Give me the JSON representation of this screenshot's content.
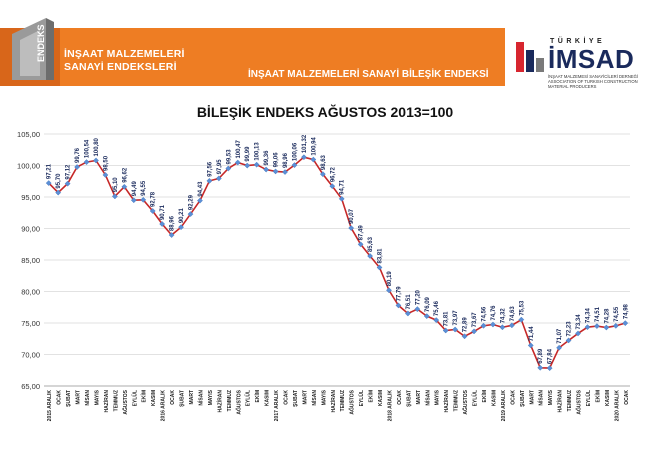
{
  "header": {
    "brand_mark": "ENDEKS",
    "brand_line1": "İNŞAAT MALZEMELERİ",
    "brand_line2": "SANAYİ ENDEKSLERİ",
    "title": "İNŞAAT MALZEMELERİ SANAYİ BİLEŞİK ENDEKSİ"
  },
  "imsad": {
    "country": "TÜRKİYE",
    "name": "İMSAD",
    "subtitle": "İNŞAAT MALZEMESİ SANAYİCİLERİ DERNEĞİ ASSOCIATION OF TURKISH CONSTRUCTION MATERIAL PRODUCERS"
  },
  "colors": {
    "orange": "#ee7d23",
    "line": "#c62828",
    "marker": "#5b8fd6",
    "navy": "#1a2a5c",
    "logo_red": "#d7262f"
  },
  "chart_data": {
    "type": "line",
    "title": "BİLEŞİK ENDEKS AĞUSTOS 2013=100",
    "ylim": [
      65,
      105
    ],
    "yticks": [
      "65,00",
      "70,00",
      "75,00",
      "80,00",
      "85,00",
      "90,00",
      "95,00",
      "100,00",
      "105,00"
    ],
    "grid": "horizontal",
    "categories": [
      "2015 ARALIK",
      "OCAK",
      "ŞUBAT",
      "MART",
      "NİSAN",
      "MAYIS",
      "HAZİRAN",
      "TEMMUZ",
      "AĞUSTOS",
      "EYLÜL",
      "EKİM",
      "KASIM",
      "2016 ARALIK",
      "OCAK",
      "ŞUBAT",
      "MART",
      "NİSAN",
      "MAYIS",
      "HAZİRAN",
      "TEMMUZ",
      "AĞUSTOS",
      "EYLÜL",
      "EKİM",
      "KASIM",
      "2017 ARALIK",
      "OCAK",
      "ŞUBAT",
      "MART",
      "NİSAN",
      "MAYIS",
      "HAZİRAN",
      "TEMMUZ",
      "AĞUSTOS",
      "EYLÜL",
      "EKİM",
      "KASIM",
      "2018 ARALIK",
      "OCAK",
      "ŞUBAT",
      "MART",
      "NİSAN",
      "MAYIS",
      "HAZİRAN",
      "TEMMUZ",
      "AĞUSTOS",
      "EYLÜL",
      "EKİM",
      "KASIM",
      "2019 ARALIK",
      "OCAK",
      "ŞUBAT",
      "MART",
      "NİSAN",
      "MAYIS",
      "HAZİRAN",
      "TEMMUZ",
      "AĞUSTOS",
      "EYLÜL",
      "EKİM",
      "KASIM",
      "2020 ARALIK",
      "OCAK"
    ],
    "values": [
      97.21,
      95.7,
      97.12,
      99.76,
      100.54,
      100.8,
      98.5,
      95.1,
      96.62,
      94.49,
      94.55,
      92.78,
      90.71,
      88.96,
      90.21,
      92.29,
      94.43,
      97.56,
      97.95,
      99.53,
      100.47,
      99.99,
      100.13,
      99.36,
      99.06,
      98.96,
      100.06,
      101.32,
      100.94,
      98.63,
      96.72,
      94.71,
      90.07,
      87.49,
      85.63,
      83.81,
      80.19,
      77.79,
      76.51,
      77.2,
      76.09,
      75.46,
      73.81,
      73.97,
      72.89,
      73.67,
      74.56,
      74.76,
      74.32,
      74.63,
      75.53,
      71.44,
      67.89,
      67.84,
      71.07,
      72.23,
      73.34,
      74.34,
      74.51,
      74.28,
      74.55,
      74.98
    ],
    "labels": [
      "97,21",
      "95,70",
      "97,12",
      "99,76",
      "100,54",
      "100,80",
      "98,50",
      "95,10",
      "96,62",
      "94,49",
      "94,55",
      "92,78",
      "90,71",
      "88,96",
      "90,21",
      "92,29",
      "94,43",
      "97,56",
      "97,95",
      "99,53",
      "100,47",
      "99,99",
      "100,13",
      "99,36",
      "99,06",
      "98,96",
      "100,06",
      "101,32",
      "100,94",
      "98,63",
      "96,72",
      "94,71",
      "90,07",
      "87,49",
      "85,63",
      "83,81",
      "80,19",
      "77,79",
      "76,51",
      "77,20",
      "76,09",
      "75,46",
      "73,81",
      "73,97",
      "72,89",
      "73,67",
      "74,56",
      "74,76",
      "74,32",
      "74,63",
      "75,53",
      "71,44",
      "67,89",
      "67,84",
      "71,07",
      "72,23",
      "73,34",
      "74,34",
      "74,51",
      "74,28",
      "74,55",
      "74,98"
    ]
  }
}
